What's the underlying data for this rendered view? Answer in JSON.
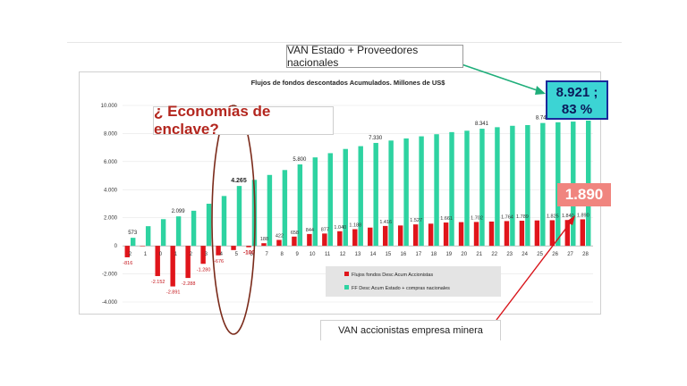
{
  "chart_data": {
    "type": "bar",
    "title": "Flujos de fondos descontados Acumulados. Millones de US$",
    "ylim": [
      -4000,
      10000
    ],
    "yticks": [
      "10.000",
      "8.000",
      "6.000",
      "4.000",
      "2.000",
      "0",
      "-2.000",
      "-4.000"
    ],
    "ytick_values": [
      10000,
      8000,
      6000,
      4000,
      2000,
      0,
      -2000,
      -4000
    ],
    "categories": [
      "2",
      "1",
      "0",
      "1",
      "2",
      "3",
      "4",
      "5",
      "6",
      "7",
      "8",
      "9",
      "10",
      "11",
      "12",
      "13",
      "14",
      "15",
      "16",
      "17",
      "18",
      "19",
      "20",
      "21",
      "22",
      "23",
      "24",
      "25",
      "26",
      "27",
      "28"
    ],
    "series": [
      {
        "name": "Flujos fondos Desc Acum Accionistas",
        "color": "#e0151b",
        "values": [
          -816,
          0,
          -2152,
          -2891,
          -2288,
          -1280,
          -676,
          -300,
          -100,
          188,
          422,
          658,
          844,
          877,
          1040,
          1188,
          1300,
          1416,
          1450,
          1527,
          1580,
          1661,
          1690,
          1702,
          1730,
          1764,
          1789,
          1810,
          1825,
          1840,
          1890
        ],
        "labels": [
          "-816",
          "",
          "-2.152",
          "-2.891",
          "-2.288",
          "-1.280",
          "-676",
          "",
          "-100",
          "188",
          "422",
          "658",
          "844",
          "877",
          "1.040",
          "1.188",
          "",
          "1.416",
          "",
          "1.527",
          "",
          "1.661",
          "",
          "1.702",
          "",
          "1.764",
          "1.789",
          "",
          "1.825",
          "1.840",
          "1.890"
        ]
      },
      {
        "name": "FF Desc Acum Estado + compras nacionales",
        "color": "#2ed3a1",
        "values": [
          573,
          1400,
          1900,
          2099,
          2500,
          3000,
          3550,
          4265,
          4700,
          5050,
          5400,
          5800,
          6300,
          6600,
          6900,
          7100,
          7330,
          7500,
          7650,
          7800,
          7950,
          8100,
          8200,
          8341,
          8450,
          8550,
          8600,
          8749,
          8800,
          8850,
          8921
        ],
        "labels": [
          "573",
          "",
          "",
          "2.099",
          "",
          "",
          "",
          "4.265",
          "",
          "",
          "",
          "5.800",
          "",
          "",
          "",
          "",
          "7.330",
          "",
          "",
          "",
          "",
          "",
          "",
          "8.341",
          "",
          "",
          "",
          "8.749",
          "",
          "",
          ""
        ]
      }
    ]
  },
  "annotations": {
    "van_estado": "VAN Estado + Proveedores nacionales",
    "value_estado_line1": "8.921 ;",
    "value_estado_line2": "83 %",
    "value_accionistas": "1.890",
    "enclave_question": "¿ Economías de enclave?",
    "van_accionistas": "VAN accionistas empresa minera"
  }
}
